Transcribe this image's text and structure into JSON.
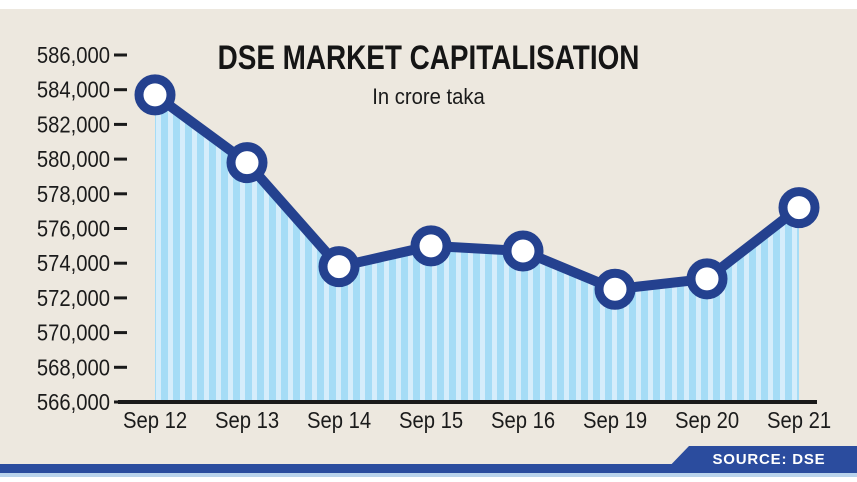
{
  "title": "DSE MARKET CAPITALISATION",
  "subtitle": "In crore taka",
  "source_badge": {
    "label": "SOURCE: DSE"
  },
  "colors": {
    "panel_background": "#EDE8DF",
    "page_background": "#FFFFFF",
    "line": "#24418F",
    "marker_fill": "#FFFFFF",
    "marker_ring": "#24418F",
    "area_stripe_light": "#D5EDFB",
    "area_stripe_dark": "#A5DCF6",
    "axis": "#1A1A1A",
    "text": "#1B1B1B",
    "bottom_bar": "#2B4C9E",
    "bottom_underline": "#B9D3EC",
    "badge_text": "#FFFFFF"
  },
  "chart_data": {
    "type": "line",
    "title": "DSE MARKET CAPITALISATION",
    "subtitle": "In crore taka",
    "categories": [
      "Sep 12",
      "Sep 13",
      "Sep 14",
      "Sep 15",
      "Sep 16",
      "Sep 19",
      "Sep 20",
      "Sep 21"
    ],
    "values": [
      583700,
      579800,
      573800,
      575000,
      574700,
      572500,
      573100,
      577200
    ],
    "series_name": "DSE market capitalisation (crore taka)",
    "ylim": [
      566000,
      586000
    ],
    "ytick_step": 2000,
    "ytick_labels": [
      "566,000",
      "568,000",
      "570,000",
      "572,000",
      "574,000",
      "576,000",
      "578,000",
      "580,000",
      "582,000",
      "584,000",
      "586,000"
    ],
    "grid": false,
    "legend": false,
    "area_fill": "striped-light-blue",
    "marker": "circle-white-navy-ring"
  }
}
